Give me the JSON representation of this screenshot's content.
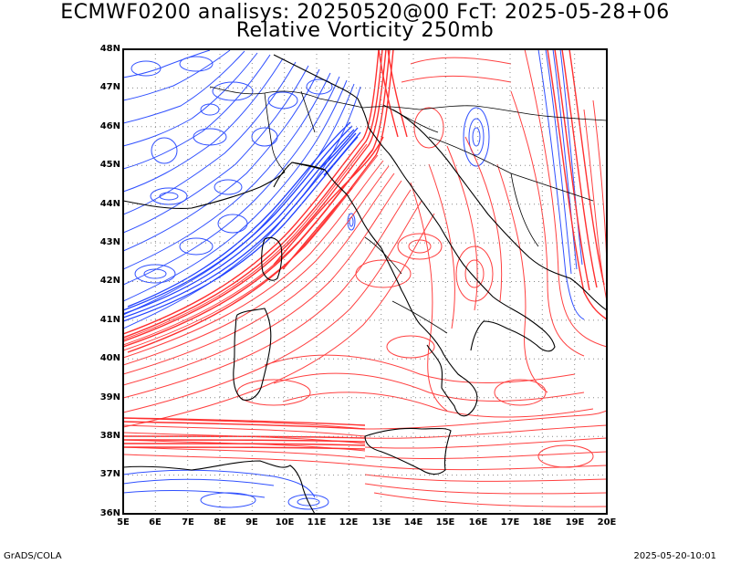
{
  "title": {
    "line1": "ECMWF0200 analisys: 20250520@00 FcT: 2025-05-28+06",
    "line2": "Relative Vorticity 250mb"
  },
  "map": {
    "lon_range": [
      5,
      20
    ],
    "lat_range": [
      36,
      48
    ],
    "lat_ticks": [
      "48N",
      "47N",
      "46N",
      "45N",
      "44N",
      "43N",
      "42N",
      "41N",
      "40N",
      "39N",
      "38N",
      "37N",
      "36N"
    ],
    "lon_ticks": [
      "5E",
      "6E",
      "7E",
      "8E",
      "9E",
      "10E",
      "11E",
      "12E",
      "13E",
      "14E",
      "15E",
      "16E",
      "17E",
      "18E",
      "19E",
      "20E"
    ],
    "grid": "dotted 1-degree",
    "positive_contour_color": "#ff4040",
    "negative_contour_color": "#3050ff",
    "coastline_color": "#000000"
  },
  "footer": {
    "left": "GrADS/COLA",
    "right": "2025-05-20-10:01"
  }
}
